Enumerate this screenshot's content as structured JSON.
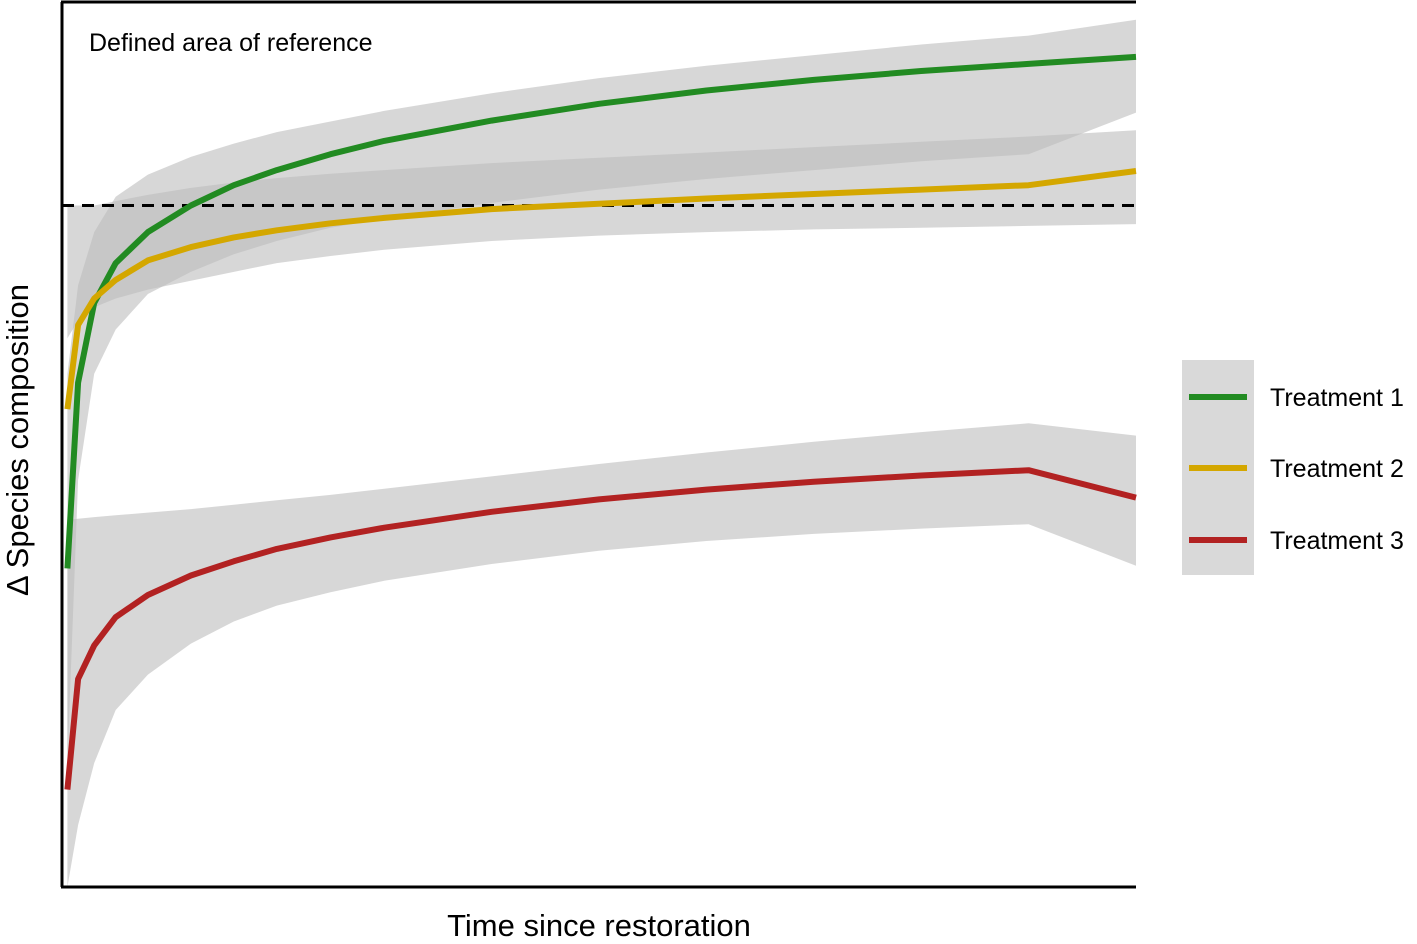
{
  "chart_data": {
    "type": "line",
    "title": "",
    "xlabel": "Time since restoration",
    "ylabel": "Δ Species composition",
    "xlim": [
      0,
      100
    ],
    "ylim": [
      0,
      100
    ],
    "x_ticks": [],
    "y_ticks": [],
    "grid": false,
    "legend_position": "right",
    "reference": {
      "label": "Defined area of reference",
      "threshold": 77
    },
    "series": [
      {
        "name": "Treatment 1",
        "color": "#228B22",
        "x": [
          0.5,
          1.5,
          3,
          5,
          8,
          12,
          16,
          20,
          25,
          30,
          40,
          50,
          60,
          70,
          80,
          90,
          100
        ],
        "y": [
          36,
          57,
          66,
          70.5,
          74,
          77,
          79.3,
          81,
          82.8,
          84.3,
          86.6,
          88.5,
          90,
          91.2,
          92.2,
          93,
          93.8
        ],
        "lower": [
          14,
          46,
          58,
          63,
          67,
          69.5,
          71.5,
          73,
          74.5,
          75.5,
          77.3,
          78.8,
          80,
          81,
          82,
          82.8,
          87.5
        ],
        "upper": [
          58,
          68,
          74,
          78,
          80.5,
          82.5,
          84,
          85.3,
          86.5,
          87.7,
          89.7,
          91.4,
          92.8,
          94,
          95.2,
          96.2,
          98
        ]
      },
      {
        "name": "Treatment 2",
        "color": "#D4A700",
        "x": [
          0.5,
          1.5,
          3,
          5,
          8,
          12,
          16,
          20,
          25,
          30,
          40,
          50,
          60,
          70,
          80,
          90,
          100
        ],
        "y": [
          54,
          63.5,
          66.5,
          68.6,
          70.8,
          72.3,
          73.4,
          74.2,
          75,
          75.6,
          76.6,
          77.2,
          77.8,
          78.3,
          78.8,
          79.3,
          80.9
        ],
        "lower": [
          62,
          64,
          65.5,
          66.5,
          67.5,
          68.5,
          69.5,
          70.5,
          71.3,
          72,
          73,
          73.6,
          74,
          74.3,
          74.5,
          74.7,
          74.9
        ],
        "upper": [
          77,
          77,
          77,
          77.5,
          78.2,
          79,
          79.6,
          80.1,
          80.6,
          81,
          81.8,
          82.4,
          83,
          83.6,
          84.2,
          84.8,
          85.5
        ]
      },
      {
        "name": "Treatment 3",
        "color": "#B22222",
        "x": [
          0.5,
          1.5,
          3,
          5,
          8,
          12,
          16,
          20,
          25,
          30,
          40,
          50,
          60,
          70,
          80,
          90,
          100
        ],
        "y": [
          11,
          23.5,
          27.3,
          30.5,
          33,
          35.2,
          36.8,
          38.2,
          39.5,
          40.6,
          42.4,
          43.8,
          44.9,
          45.8,
          46.5,
          47.1,
          44
        ],
        "lower": [
          0,
          7,
          14,
          20,
          24,
          27.5,
          30,
          31.8,
          33.3,
          34.6,
          36.5,
          38,
          39.1,
          39.9,
          40.5,
          41,
          36.3
        ],
        "upper": [
          41.5,
          41.6,
          41.8,
          42,
          42.3,
          42.7,
          43.2,
          43.7,
          44.3,
          45,
          46.4,
          47.8,
          49.1,
          50.3,
          51.4,
          52.4,
          51
        ]
      }
    ]
  }
}
